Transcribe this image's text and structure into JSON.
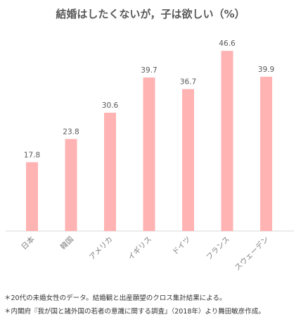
{
  "chart_data": {
    "type": "bar",
    "title": "結婚はしたくないが，子は欲しい（%）",
    "categories": [
      "日本",
      "韓国",
      "アメリカ",
      "イギリス",
      "ドイツ",
      "フランス",
      "スウェーデン"
    ],
    "values": [
      17.8,
      23.8,
      30.6,
      39.7,
      36.7,
      46.6,
      39.9
    ],
    "xlabel": "",
    "ylabel": "",
    "ylim": [
      0,
      50
    ],
    "grid": false,
    "bar_color": "#ffb3b3",
    "axis_color": "#d9d9d9"
  },
  "notes": [
    "＊20代の未婚女性のデータ。結婚観と出産願望のクロス集計結果による。",
    "＊内閣府『我が国と諸外国の若者の意識に関する調査』（2018年）より舞田敏彦作成。"
  ]
}
